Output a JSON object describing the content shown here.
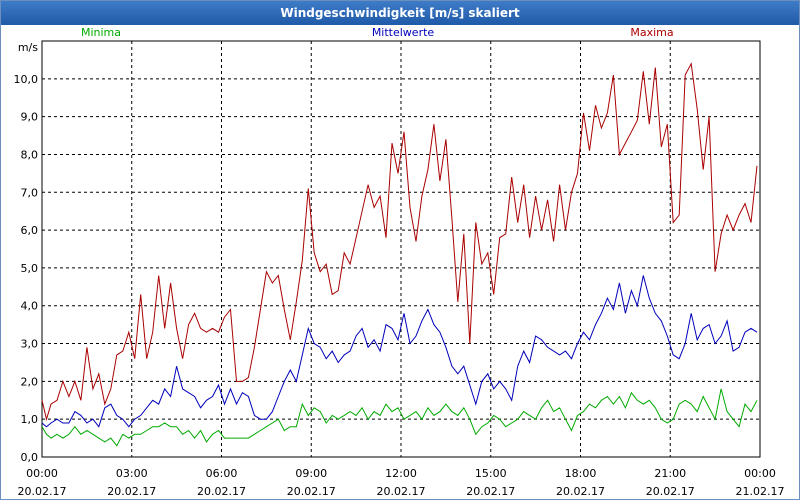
{
  "window": {
    "title": "Windgeschwindigkeit [m/s] skaliert"
  },
  "chart_data": {
    "type": "line",
    "title": "Windgeschwindigkeit [m/s] skaliert",
    "ylabel": "m/s",
    "ylim": [
      0,
      11
    ],
    "xlim": [
      0,
      24
    ],
    "y_ticks": [
      {
        "v": 0,
        "label": "0,0"
      },
      {
        "v": 1,
        "label": "1,0"
      },
      {
        "v": 2,
        "label": "2,0"
      },
      {
        "v": 3,
        "label": "3,0"
      },
      {
        "v": 4,
        "label": "4,0"
      },
      {
        "v": 5,
        "label": "5,0"
      },
      {
        "v": 6,
        "label": "6,0"
      },
      {
        "v": 7,
        "label": "7,0"
      },
      {
        "v": 8,
        "label": "8,0"
      },
      {
        "v": 9,
        "label": "9,0"
      },
      {
        "v": 10,
        "label": "10,0"
      }
    ],
    "x_ticks": [
      {
        "v": 0,
        "time": "00:00",
        "date": "20.02.17"
      },
      {
        "v": 3,
        "time": "03:00",
        "date": "20.02.17"
      },
      {
        "v": 6,
        "time": "06:00",
        "date": "20.02.17"
      },
      {
        "v": 9,
        "time": "09:00",
        "date": "20.02.17"
      },
      {
        "v": 12,
        "time": "12:00",
        "date": "20.02.17"
      },
      {
        "v": 15,
        "time": "15:00",
        "date": "20.02.17"
      },
      {
        "v": 18,
        "time": "18:00",
        "date": "20.02.17"
      },
      {
        "v": 21,
        "time": "21:00",
        "date": "20.02.17"
      },
      {
        "v": 24,
        "time": "00:00",
        "date": "21.02.17"
      }
    ],
    "series": [
      {
        "name": "Minima",
        "color": "#00aa00",
        "x": [
          0,
          0.15,
          0.3,
          0.5,
          0.7,
          0.9,
          1.1,
          1.3,
          1.5,
          1.7,
          1.9,
          2.1,
          2.3,
          2.5,
          2.7,
          2.9,
          3.1,
          3.3,
          3.5,
          3.7,
          3.9,
          4.1,
          4.3,
          4.5,
          4.7,
          4.9,
          5.1,
          5.3,
          5.5,
          5.7,
          5.9,
          6.1,
          6.3,
          6.5,
          6.7,
          6.9,
          7.1,
          7.3,
          7.5,
          7.7,
          7.9,
          8.1,
          8.3,
          8.5,
          8.7,
          8.9,
          9.1,
          9.3,
          9.5,
          9.7,
          9.9,
          10.1,
          10.3,
          10.5,
          10.7,
          10.9,
          11.1,
          11.3,
          11.5,
          11.7,
          11.9,
          12.1,
          12.3,
          12.5,
          12.7,
          12.9,
          13.1,
          13.3,
          13.5,
          13.7,
          13.9,
          14.1,
          14.3,
          14.5,
          14.7,
          14.9,
          15.1,
          15.3,
          15.5,
          15.7,
          15.9,
          16.1,
          16.3,
          16.5,
          16.7,
          16.9,
          17.1,
          17.3,
          17.5,
          17.7,
          17.9,
          18.1,
          18.3,
          18.5,
          18.7,
          18.9,
          19.1,
          19.3,
          19.5,
          19.7,
          19.9,
          20.1,
          20.3,
          20.5,
          20.7,
          20.9,
          21.1,
          21.3,
          21.5,
          21.7,
          21.9,
          22.1,
          22.3,
          22.5,
          22.7,
          22.9,
          23.1,
          23.3,
          23.5,
          23.7,
          23.9
        ],
        "values": [
          0.8,
          0.6,
          0.5,
          0.6,
          0.5,
          0.6,
          0.8,
          0.6,
          0.7,
          0.6,
          0.5,
          0.4,
          0.5,
          0.3,
          0.6,
          0.5,
          0.6,
          0.6,
          0.7,
          0.8,
          0.8,
          0.9,
          0.8,
          0.8,
          0.6,
          0.7,
          0.5,
          0.7,
          0.4,
          0.6,
          0.7,
          0.5,
          0.5,
          0.5,
          0.5,
          0.5,
          0.6,
          0.7,
          0.8,
          0.9,
          1.0,
          0.7,
          0.8,
          0.8,
          1.4,
          1.1,
          1.3,
          1.2,
          0.9,
          1.1,
          1.0,
          1.1,
          1.2,
          1.1,
          1.3,
          1.0,
          1.2,
          1.1,
          1.4,
          1.2,
          1.3,
          1.0,
          1.1,
          1.2,
          1.0,
          1.3,
          1.1,
          1.2,
          1.4,
          1.2,
          1.1,
          1.3,
          1.0,
          0.6,
          0.8,
          0.9,
          1.1,
          1.0,
          0.8,
          0.9,
          1.0,
          1.2,
          1.1,
          1.0,
          1.3,
          1.5,
          1.2,
          1.3,
          1.0,
          0.7,
          1.1,
          1.2,
          1.4,
          1.3,
          1.5,
          1.6,
          1.4,
          1.6,
          1.3,
          1.7,
          1.5,
          1.4,
          1.5,
          1.3,
          1.0,
          0.9,
          1.0,
          1.4,
          1.5,
          1.4,
          1.2,
          1.6,
          1.3,
          1.0,
          1.8,
          1.2,
          1.0,
          0.8,
          1.4,
          1.2,
          1.5
        ]
      },
      {
        "name": "Mittelwerte",
        "color": "#0000bb",
        "x": [
          0,
          0.15,
          0.3,
          0.5,
          0.7,
          0.9,
          1.1,
          1.3,
          1.5,
          1.7,
          1.9,
          2.1,
          2.3,
          2.5,
          2.7,
          2.9,
          3.1,
          3.3,
          3.5,
          3.7,
          3.9,
          4.1,
          4.3,
          4.5,
          4.7,
          4.9,
          5.1,
          5.3,
          5.5,
          5.7,
          5.9,
          6.1,
          6.3,
          6.5,
          6.7,
          6.9,
          7.1,
          7.3,
          7.5,
          7.7,
          7.9,
          8.1,
          8.3,
          8.5,
          8.7,
          8.9,
          9.1,
          9.3,
          9.5,
          9.7,
          9.9,
          10.1,
          10.3,
          10.5,
          10.7,
          10.9,
          11.1,
          11.3,
          11.5,
          11.7,
          11.9,
          12.1,
          12.3,
          12.5,
          12.7,
          12.9,
          13.1,
          13.3,
          13.5,
          13.7,
          13.9,
          14.1,
          14.3,
          14.5,
          14.7,
          14.9,
          15.1,
          15.3,
          15.5,
          15.7,
          15.9,
          16.1,
          16.3,
          16.5,
          16.7,
          16.9,
          17.1,
          17.3,
          17.5,
          17.7,
          17.9,
          18.1,
          18.3,
          18.5,
          18.7,
          18.9,
          19.1,
          19.3,
          19.5,
          19.7,
          19.9,
          20.1,
          20.3,
          20.5,
          20.7,
          20.9,
          21.1,
          21.3,
          21.5,
          21.7,
          21.9,
          22.1,
          22.3,
          22.5,
          22.7,
          22.9,
          23.1,
          23.3,
          23.5,
          23.7,
          23.9
        ],
        "values": [
          0.9,
          0.8,
          0.9,
          1.0,
          0.9,
          0.9,
          1.2,
          1.1,
          0.9,
          1.0,
          0.8,
          1.3,
          1.4,
          1.1,
          1.0,
          0.8,
          1.0,
          1.1,
          1.3,
          1.5,
          1.4,
          1.8,
          1.6,
          2.4,
          1.8,
          1.7,
          1.6,
          1.3,
          1.5,
          1.6,
          1.9,
          1.4,
          1.8,
          1.4,
          1.7,
          1.6,
          1.1,
          1.0,
          1.0,
          1.2,
          1.6,
          2.0,
          2.3,
          2.0,
          2.7,
          3.4,
          3.0,
          2.9,
          2.6,
          2.8,
          2.5,
          2.7,
          2.8,
          3.2,
          3.4,
          2.9,
          3.1,
          2.8,
          3.5,
          3.4,
          3.1,
          3.8,
          3.0,
          3.2,
          3.6,
          3.9,
          3.5,
          3.3,
          2.9,
          2.4,
          2.2,
          2.4,
          1.9,
          1.4,
          2.0,
          2.2,
          1.8,
          2.0,
          1.8,
          1.5,
          2.4,
          2.8,
          2.5,
          3.2,
          3.1,
          2.9,
          2.8,
          2.7,
          2.8,
          2.6,
          3.0,
          3.3,
          3.1,
          3.5,
          3.8,
          4.2,
          3.9,
          4.6,
          3.8,
          4.4,
          4.0,
          4.8,
          4.2,
          3.8,
          3.6,
          3.2,
          2.7,
          2.6,
          3.0,
          3.8,
          3.1,
          3.4,
          3.5,
          3.0,
          3.2,
          3.6,
          2.8,
          2.9,
          3.3,
          3.4,
          3.3
        ]
      },
      {
        "name": "Maxima",
        "color": "#aa0000",
        "x": [
          0,
          0.15,
          0.3,
          0.5,
          0.7,
          0.9,
          1.1,
          1.3,
          1.5,
          1.7,
          1.9,
          2.1,
          2.3,
          2.5,
          2.7,
          2.9,
          3.1,
          3.3,
          3.5,
          3.7,
          3.9,
          4.1,
          4.3,
          4.5,
          4.7,
          4.9,
          5.1,
          5.3,
          5.5,
          5.7,
          5.9,
          6.1,
          6.3,
          6.5,
          6.7,
          6.9,
          7.1,
          7.3,
          7.5,
          7.7,
          7.9,
          8.1,
          8.3,
          8.5,
          8.7,
          8.9,
          9.1,
          9.3,
          9.5,
          9.7,
          9.9,
          10.1,
          10.3,
          10.5,
          10.7,
          10.9,
          11.1,
          11.3,
          11.5,
          11.7,
          11.9,
          12.1,
          12.3,
          12.5,
          12.7,
          12.9,
          13.1,
          13.3,
          13.5,
          13.7,
          13.9,
          14.1,
          14.3,
          14.5,
          14.7,
          14.9,
          15.1,
          15.3,
          15.5,
          15.7,
          15.9,
          16.1,
          16.3,
          16.5,
          16.7,
          16.9,
          17.1,
          17.3,
          17.5,
          17.7,
          17.9,
          18.1,
          18.3,
          18.5,
          18.7,
          18.9,
          19.1,
          19.3,
          19.5,
          19.7,
          19.9,
          20.1,
          20.3,
          20.5,
          20.7,
          20.9,
          21.1,
          21.3,
          21.5,
          21.7,
          21.9,
          22.1,
          22.3,
          22.5,
          22.7,
          22.9,
          23.1,
          23.3,
          23.5,
          23.7,
          23.9
        ],
        "values": [
          1.5,
          1.0,
          1.4,
          1.5,
          2.0,
          1.6,
          2.0,
          1.5,
          2.9,
          1.8,
          2.2,
          1.4,
          1.8,
          2.7,
          2.8,
          3.3,
          2.6,
          4.3,
          2.6,
          3.3,
          4.8,
          3.4,
          4.6,
          3.4,
          2.6,
          3.5,
          3.8,
          3.4,
          3.3,
          3.4,
          3.3,
          3.7,
          3.9,
          2.0,
          2.0,
          2.1,
          2.9,
          3.9,
          4.9,
          4.6,
          4.8,
          3.9,
          3.1,
          4.1,
          5.2,
          7.1,
          5.4,
          4.9,
          5.1,
          4.3,
          4.4,
          5.4,
          5.1,
          5.8,
          6.5,
          7.2,
          6.6,
          6.9,
          5.8,
          8.3,
          7.5,
          8.6,
          6.6,
          5.7,
          6.9,
          7.6,
          8.8,
          7.3,
          8.4,
          6.3,
          4.1,
          5.9,
          3.0,
          6.2,
          5.1,
          5.4,
          4.3,
          5.8,
          5.9,
          7.4,
          6.2,
          7.2,
          5.8,
          6.9,
          6.0,
          6.8,
          5.7,
          7.2,
          6.0,
          7.0,
          7.5,
          9.1,
          8.1,
          9.3,
          8.7,
          9.1,
          10.1,
          8.0,
          8.3,
          8.6,
          8.9,
          10.2,
          8.8,
          10.3,
          8.2,
          8.8,
          6.2,
          6.4,
          10.1,
          10.4,
          9.2,
          7.6,
          9.0,
          4.9,
          5.9,
          6.4,
          6.0,
          6.4,
          6.7,
          6.2,
          7.7
        ]
      }
    ]
  }
}
